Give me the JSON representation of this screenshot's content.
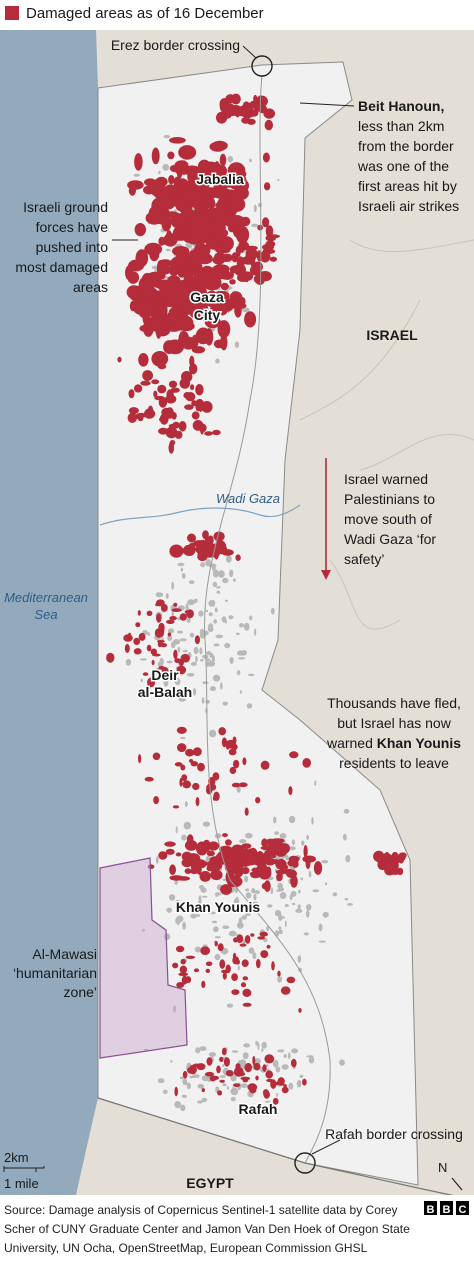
{
  "legend_label": "Damaged areas as of 16 December",
  "places": {
    "erez": "Erez border crossing",
    "jabalia": "Jabalia",
    "gaza_city": [
      "Gaza",
      "City"
    ],
    "israel": "ISRAEL",
    "wadi_gaza": "Wadi Gaza",
    "mediterranean": [
      "Mediterranean",
      "Sea"
    ],
    "deir_al_balah": [
      "Deir",
      "al-Balah"
    ],
    "khan_younis": "Khan Younis",
    "al_mawasi": [
      "Al-Mawasi",
      "‘humanitarian",
      "zone’"
    ],
    "rafah": "Rafah",
    "rafah_crossing": "Rafah border crossing",
    "egypt": "EGYPT"
  },
  "annotations": {
    "beit_hanoun": [
      "Beit Hanoun,",
      "less than 2km",
      "from the border",
      "was one of the",
      "first areas hit by",
      "Israeli air strikes"
    ],
    "ground_forces": [
      "Israeli ground",
      "forces have",
      "pushed into",
      "most damaged",
      "areas"
    ],
    "wadi_warning": [
      "Israel warned",
      "Palestinians to",
      "move south of",
      "Wadi Gaza ‘for",
      "safety’"
    ],
    "khan_younis_warning": [
      "Thousands have fled,",
      "but Israel has now",
      [
        "warned",
        "Khan Younis"
      ],
      "residents to leave"
    ]
  },
  "scale": {
    "km": "2km",
    "mile": "1 mile"
  },
  "north": "N",
  "source": [
    "Source: Damage analysis of Copernicus Sentinel-1 satellite data by Corey",
    "Scher of CUNY Graduate Center and Jamon Van Den Hoek of Oregon State",
    "University, UN Ocha, OpenStreetMap, European Commission GHSL"
  ],
  "logo": [
    "B",
    "B",
    "C"
  ]
}
